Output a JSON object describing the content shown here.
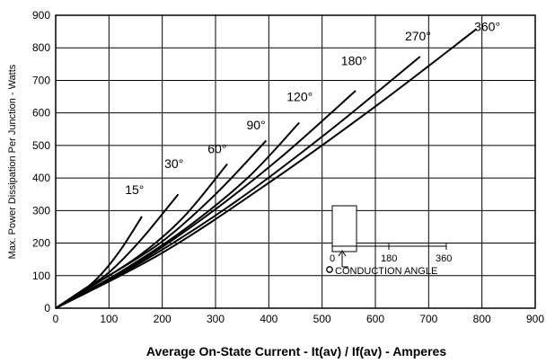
{
  "chart_data": {
    "type": "line",
    "xlabel": "Average On-State Current - It(av) / If(av) - Amperes",
    "ylabel": "Max. Power Dissipation Per Junction - Watts",
    "xlim": [
      0,
      900
    ],
    "ylim": [
      0,
      900
    ],
    "x_ticks": [
      "0",
      "100",
      "200",
      "300",
      "400",
      "500",
      "600",
      "700",
      "800",
      "900"
    ],
    "y_ticks": [
      "0",
      "100",
      "200",
      "300",
      "400",
      "500",
      "600",
      "700",
      "800",
      "900"
    ],
    "grid": true,
    "series": [
      {
        "name": "15°",
        "label_at": [
          148,
          350
        ],
        "points": [
          [
            0,
            0
          ],
          [
            40,
            40
          ],
          [
            80,
            95
          ],
          [
            120,
            175
          ],
          [
            162,
            282
          ]
        ]
      },
      {
        "name": "30°",
        "label_at": [
          222,
          430
        ],
        "points": [
          [
            0,
            0
          ],
          [
            50,
            55
          ],
          [
            100,
            110
          ],
          [
            160,
            210
          ],
          [
            230,
            350
          ]
        ]
      },
      {
        "name": "60°",
        "label_at": [
          303,
          476
        ],
        "points": [
          [
            0,
            0
          ],
          [
            80,
            80
          ],
          [
            160,
            165
          ],
          [
            240,
            280
          ],
          [
            322,
            443
          ]
        ]
      },
      {
        "name": "90°",
        "label_at": [
          376,
          550
        ],
        "points": [
          [
            0,
            0
          ],
          [
            100,
            100
          ],
          [
            200,
            205
          ],
          [
            300,
            350
          ],
          [
            395,
            515
          ]
        ]
      },
      {
        "name": "120°",
        "label_at": [
          458,
          637
        ],
        "points": [
          [
            0,
            0
          ],
          [
            120,
            110
          ],
          [
            240,
            240
          ],
          [
            360,
            400
          ],
          [
            457,
            570
          ]
        ]
      },
      {
        "name": "180°",
        "label_at": [
          560,
          747
        ],
        "points": [
          [
            0,
            0
          ],
          [
            140,
            125
          ],
          [
            280,
            280
          ],
          [
            420,
            460
          ],
          [
            563,
            668
          ]
        ]
      },
      {
        "name": "270°",
        "label_at": [
          680,
          823
        ],
        "points": [
          [
            0,
            0
          ],
          [
            170,
            150
          ],
          [
            340,
            330
          ],
          [
            510,
            540
          ],
          [
            684,
            773
          ]
        ]
      },
      {
        "name": "360°",
        "label_at": [
          810,
          852
        ],
        "points": [
          [
            0,
            0
          ],
          [
            200,
            170
          ],
          [
            400,
            385
          ],
          [
            600,
            620
          ],
          [
            790,
            858
          ]
        ]
      }
    ],
    "inset": {
      "axis_labels": [
        "0",
        "180",
        "360"
      ],
      "caption": "CONDUCTION ANGLE",
      "marker": "o"
    }
  }
}
